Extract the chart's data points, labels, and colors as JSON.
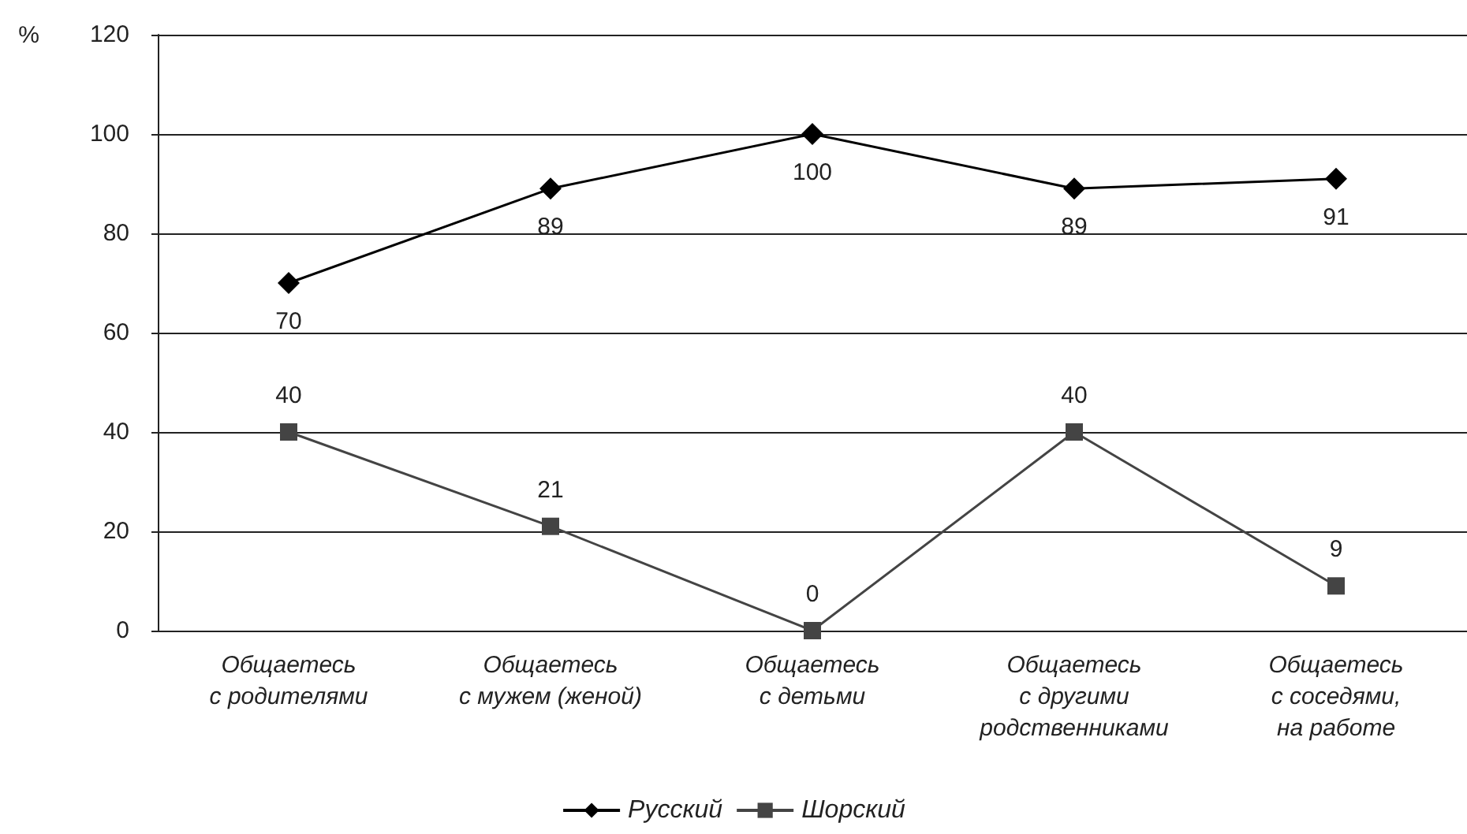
{
  "chart_data": {
    "type": "line",
    "ylabel": "%",
    "categories": [
      "Общаетесь\nс родителями",
      "Общаетесь\nс мужем (женой)",
      "Общаетесь\nс детьми",
      "Общаетесь\nс другими\nродственниками",
      "Общаетесь\nс соседями,\nна работе"
    ],
    "series": [
      {
        "name": "Русский",
        "color": "#000000",
        "marker": "diamond",
        "values": [
          70,
          89,
          100,
          89,
          91
        ]
      },
      {
        "name": "Шорский",
        "color": "#444444",
        "marker": "square",
        "values": [
          40,
          21,
          0,
          40,
          9
        ]
      }
    ],
    "ylim": [
      0,
      120
    ],
    "yticks": [
      0,
      20,
      40,
      60,
      80,
      100,
      120
    ],
    "grid": "y",
    "legend": "bottom",
    "data_labels": true,
    "line_style": "solid"
  }
}
